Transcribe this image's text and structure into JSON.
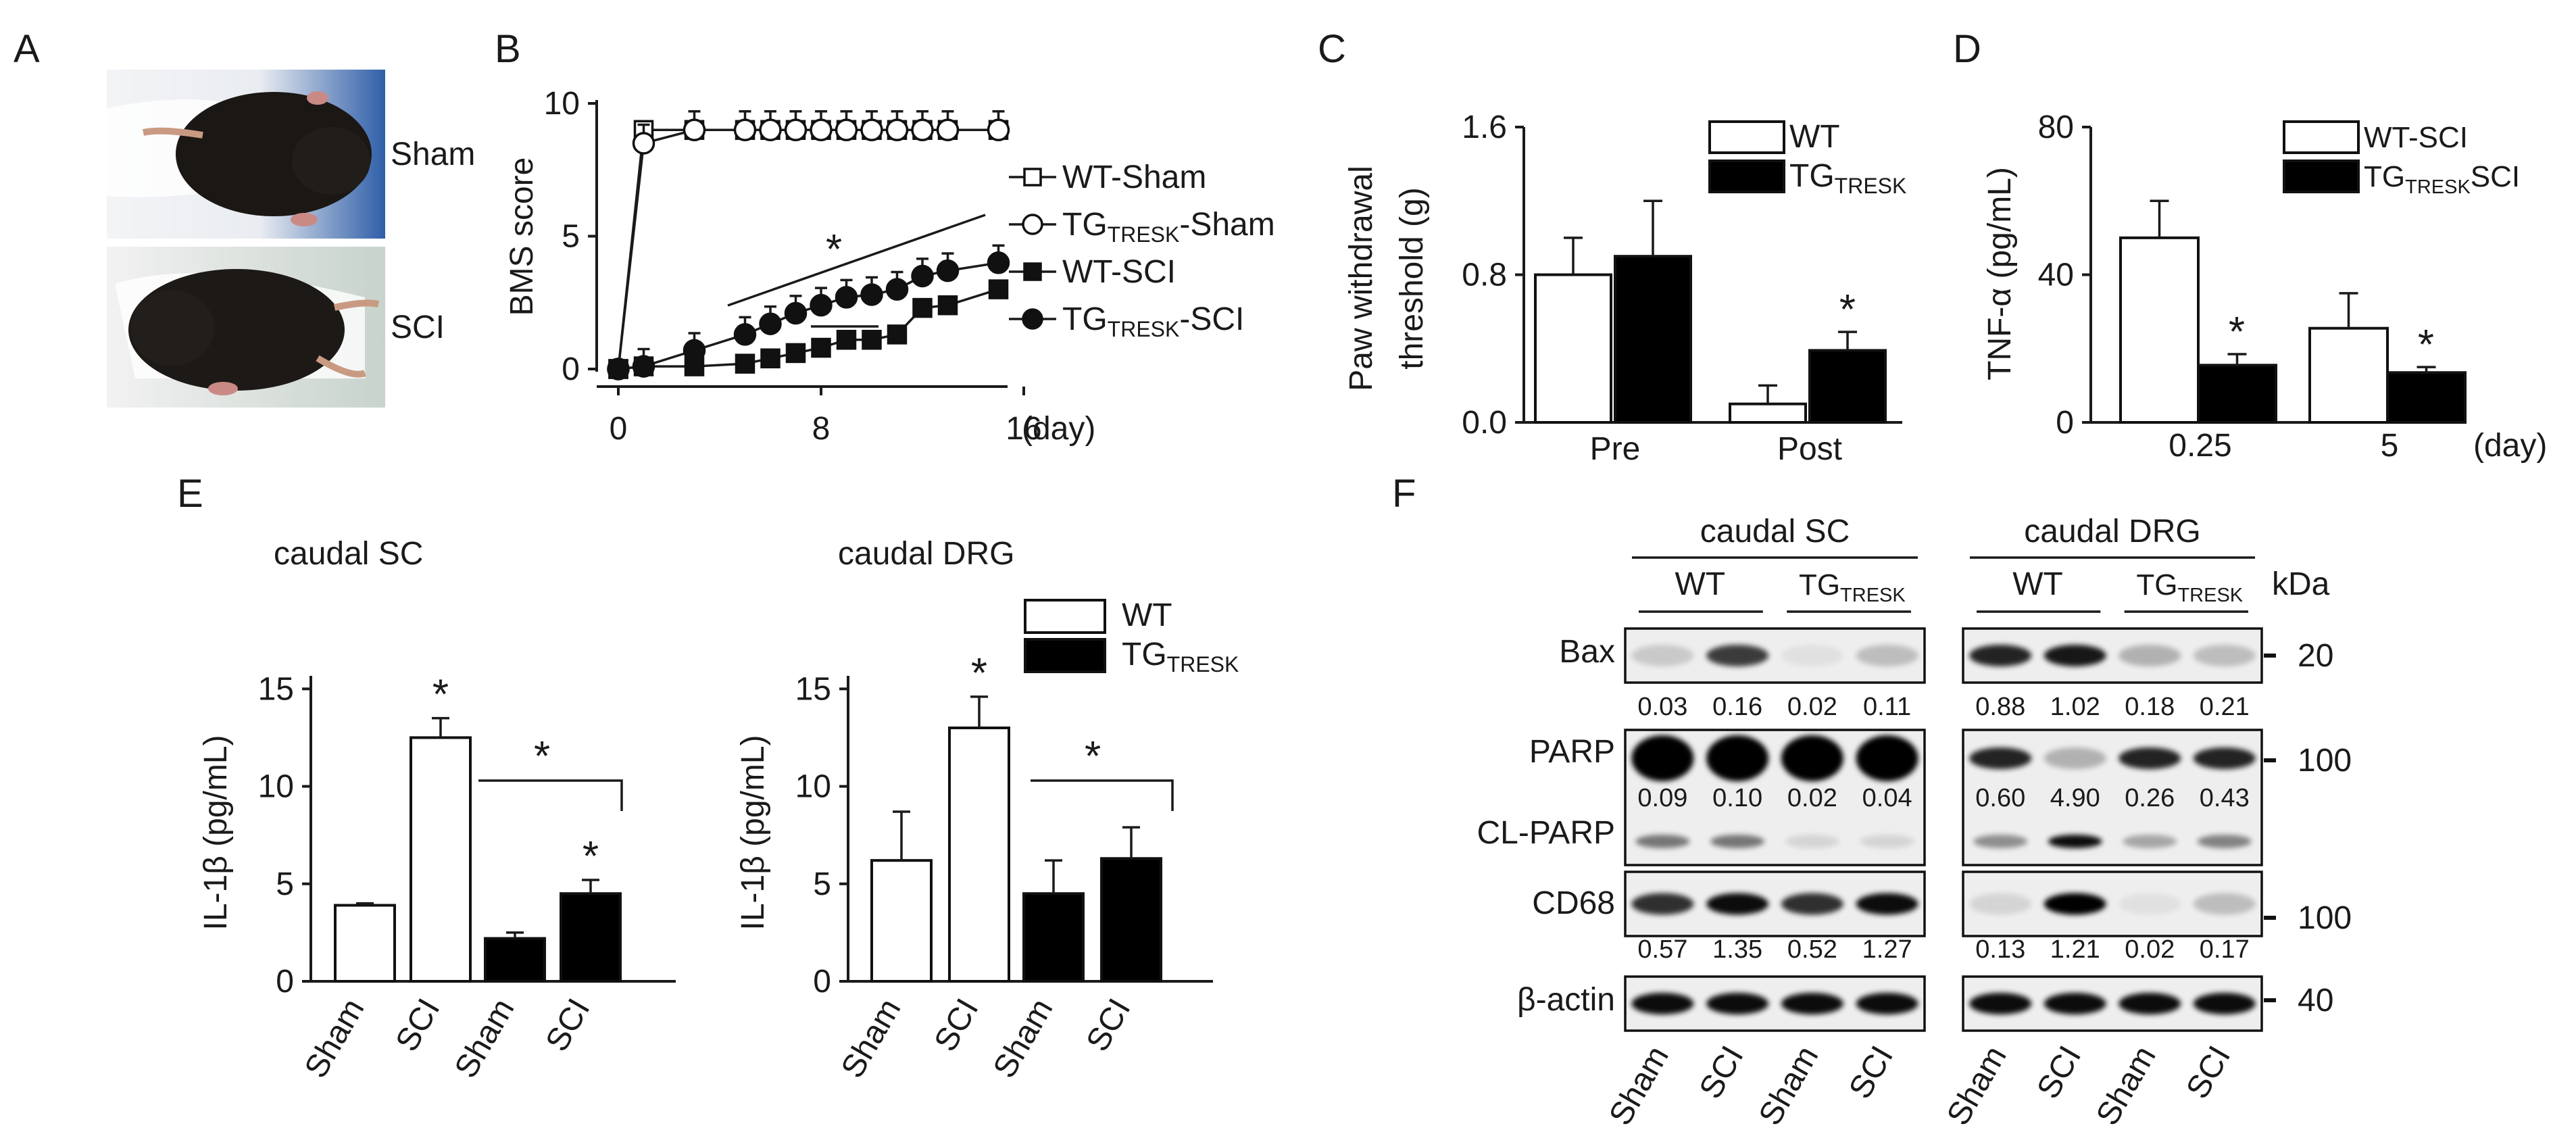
{
  "figure": {
    "panels": [
      "A",
      "B",
      "C",
      "D",
      "E",
      "F"
    ],
    "panel_a": {
      "labels": [
        "Sham",
        "SCI"
      ]
    },
    "significance_mark": "*",
    "e_subtitles": [
      "caudal SC",
      "caudal DRG"
    ],
    "f_blot": {
      "group_titles": [
        "caudal SC",
        "caudal DRG"
      ],
      "genotypes": [
        "WT",
        "TG",
        "TRESK"
      ],
      "unit": "kDa",
      "rows": [
        {
          "label": "Bax",
          "marker": "20",
          "sc_values": [
            "0.03",
            "0.16",
            "0.02",
            "0.11"
          ],
          "drg_values": [
            "0.88",
            "1.02",
            "0.18",
            "0.21"
          ]
        },
        {
          "label": "PARP",
          "marker": "100",
          "sc_values": [
            "0.09",
            "0.10",
            "0.02",
            "0.04"
          ],
          "drg_values": [
            "0.60",
            "4.90",
            "0.26",
            "0.43"
          ]
        },
        {
          "label": "CL-PARP",
          "marker": ""
        },
        {
          "label": "CD68",
          "marker": "100",
          "sc_values": [
            "0.57",
            "1.35",
            "0.52",
            "1.27"
          ],
          "drg_values": [
            "0.13",
            "1.21",
            "0.02",
            "0.17"
          ]
        },
        {
          "label": "β-actin",
          "marker": "40"
        }
      ],
      "lane_labels": [
        "Sham",
        "SCI",
        "Sham",
        "SCI"
      ]
    }
  },
  "chart_data": [
    {
      "panel": "B",
      "type": "line",
      "ylabel": "BMS score",
      "xlabel": "(day)",
      "xlim": [
        0,
        16
      ],
      "ylim": [
        0,
        10
      ],
      "xticks": [
        "0",
        "8",
        "16"
      ],
      "yticks": [
        "0",
        "5",
        "10"
      ],
      "x": [
        0,
        1,
        3,
        5,
        6,
        7,
        8,
        9,
        10,
        11,
        12,
        13,
        15
      ],
      "series": [
        {
          "name": "WT-Sham",
          "name_parts": [
            "WT-Sham",
            "",
            ""
          ],
          "marker": "open-square",
          "values": [
            0,
            9,
            9,
            9,
            9,
            9,
            9,
            9,
            9,
            9,
            9,
            9,
            9
          ]
        },
        {
          "name": "TG-TRESK-Sham",
          "name_parts": [
            "TG",
            "TRESK",
            "-Sham"
          ],
          "marker": "open-circle",
          "values": [
            0,
            8.5,
            9,
            9,
            9,
            9,
            9,
            9,
            9,
            9,
            9,
            9,
            9
          ]
        },
        {
          "name": "WT-SCI",
          "name_parts": [
            "WT-SCI",
            "",
            ""
          ],
          "marker": "filled-square",
          "values": [
            0,
            0.1,
            0.1,
            0.2,
            0.4,
            0.6,
            0.8,
            1.1,
            1.1,
            1.3,
            2.3,
            2.4,
            3.0
          ]
        },
        {
          "name": "TG-TRESK-SCI",
          "name_parts": [
            "TG",
            "TRESK",
            "-SCI"
          ],
          "marker": "filled-circle",
          "values": [
            0,
            0.1,
            0.7,
            1.3,
            1.7,
            2.1,
            2.4,
            2.7,
            2.8,
            3.0,
            3.5,
            3.7,
            4.0
          ]
        }
      ]
    },
    {
      "panel": "C",
      "type": "bar",
      "ylabel": "Paw withdrawal threshold (g)",
      "ylabel_lines": [
        "Paw withdrawal",
        "threshold (g)"
      ],
      "categories": [
        "Pre",
        "Post"
      ],
      "ylim": [
        0,
        1.6
      ],
      "yticks": [
        "0.0",
        "0.8",
        "1.6"
      ],
      "series": [
        {
          "name": "WT",
          "name_parts": [
            "WT",
            ""
          ],
          "values": [
            0.8,
            0.1
          ],
          "errors": [
            0.2,
            0.1
          ]
        },
        {
          "name": "TG-TRESK",
          "name_parts": [
            "TG",
            "TRESK"
          ],
          "values": [
            0.9,
            0.39
          ],
          "errors": [
            0.3,
            0.1
          ]
        }
      ],
      "significant": [
        [
          1,
          1
        ]
      ]
    },
    {
      "panel": "D",
      "type": "bar",
      "ylabel": "TNF-α (pg/mL)",
      "xlabel": "(day)",
      "categories": [
        "0.25",
        "5"
      ],
      "ylim": [
        0,
        80
      ],
      "yticks": [
        "0",
        "40",
        "80"
      ],
      "series": [
        {
          "name": "WT-SCI",
          "name_parts": [
            "WT-SCI",
            "",
            ""
          ],
          "values": [
            50,
            25.5
          ],
          "errors": [
            10,
            9.5
          ]
        },
        {
          "name": "TG-TRESK SCI",
          "name_parts": [
            "TG",
            "TRESK",
            "SCI"
          ],
          "values": [
            15.5,
            13.5
          ],
          "errors": [
            3,
            1.5
          ]
        }
      ],
      "significant": [
        [
          1,
          0
        ],
        [
          1,
          1
        ]
      ]
    },
    {
      "panel": "E-caudal SC",
      "type": "bar",
      "title": "caudal SC",
      "ylabel": "IL-1β (pg/mL)",
      "categories": [
        "Sham",
        "SCI",
        "Sham",
        "SCI"
      ],
      "ylim": [
        0,
        15
      ],
      "yticks": [
        "0",
        "5",
        "10",
        "15"
      ],
      "values": [
        3.9,
        12.5,
        2.2,
        4.5
      ],
      "errors": [
        0.1,
        1.0,
        0.3,
        0.7
      ],
      "group": [
        "WT",
        "WT",
        "TG-TRESK",
        "TG-TRESK"
      ],
      "significant": [
        1,
        3
      ]
    },
    {
      "panel": "E-caudal DRG",
      "type": "bar",
      "title": "caudal DRG",
      "ylabel": "IL-1β (pg/mL)",
      "categories": [
        "Sham",
        "SCI",
        "Sham",
        "SCI"
      ],
      "ylim": [
        0,
        15
      ],
      "yticks": [
        "0",
        "5",
        "10",
        "15"
      ],
      "values": [
        6.2,
        13.0,
        4.5,
        6.3
      ],
      "errors": [
        2.5,
        1.6,
        1.7,
        1.6
      ],
      "group": [
        "WT",
        "WT",
        "TG-TRESK",
        "TG-TRESK"
      ],
      "significant": [
        1
      ],
      "legend": [
        {
          "name_parts": [
            "WT",
            ""
          ]
        },
        {
          "name_parts": [
            "TG",
            "TRESK"
          ]
        }
      ]
    }
  ]
}
